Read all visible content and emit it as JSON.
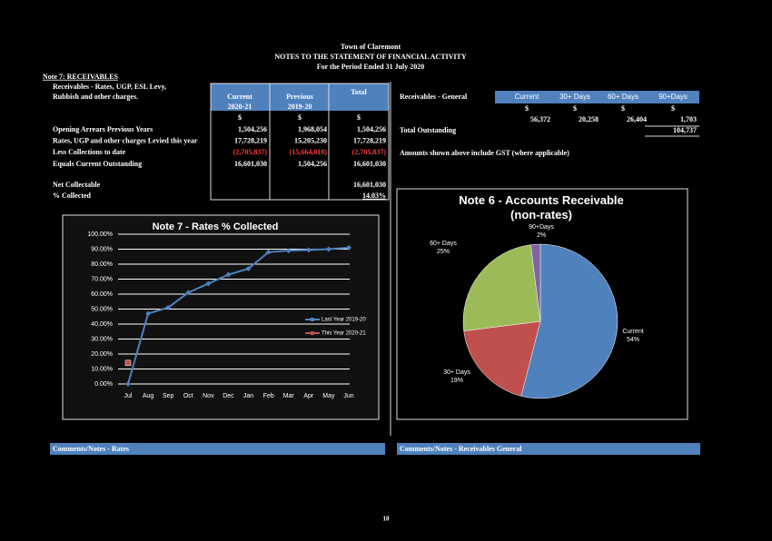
{
  "header": {
    "lines": [
      "Town of Claremont",
      "NOTES TO THE STATEMENT OF FINANCIAL ACTIVITY",
      "For the Period Ended 31 July 2020"
    ]
  },
  "rates": {
    "title": "Note 7: RECEIVABLES",
    "subtitle": [
      "Receivables - Rates, UGP, ESL Levy,",
      "Rubbish and other charges."
    ],
    "columns": [
      [
        "Current",
        "2020-21"
      ],
      [
        "Previous",
        "2019-20"
      ],
      [
        "Total"
      ]
    ],
    "units": [
      "$",
      "$",
      "$"
    ],
    "rows": [
      {
        "label": "Opening Arrears Previous Years",
        "cells": [
          "1,504,256",
          "1,968,054",
          "1,504,256"
        ]
      },
      {
        "label": "Rates, UGP and other charges Levied this year",
        "cells": [
          "17,728,219",
          "15,205,230",
          "17,728,219"
        ]
      },
      {
        "label": "Less Collections to date",
        "cells": [
          "(2,705,837)",
          "(15,664,018)",
          "(2,705,837)"
        ]
      },
      {
        "label": "Equals Current Outstanding",
        "cells": [
          "16,601,030",
          "1,504,256",
          "16,601,030"
        ]
      }
    ],
    "net_label": "Net Collectable",
    "net_value": "16,601,030",
    "pct_label": "% Collected",
    "pct_value": "14.03%"
  },
  "general": {
    "title": "Receivables - General",
    "columns": [
      "Current",
      "30+ Days",
      "60+ Days",
      "90+Days"
    ],
    "units": [
      "$",
      "$",
      "$",
      "$"
    ],
    "cells": [
      "56,372",
      "20,258",
      "26,404",
      "1,703"
    ],
    "total_label": "Total Outstanding",
    "total_value": "104,737",
    "note": "Amounts shown above include GST (where applicable)"
  },
  "chart_data": [
    {
      "type": "line",
      "title": "Note 7 - Rates % Collected",
      "categories": [
        "Jul",
        "Aug",
        "Sep",
        "Oct",
        "Nov",
        "Dec",
        "Jan",
        "Feb",
        "Mar",
        "Apr",
        "May",
        "Jun"
      ],
      "series": [
        {
          "name": "Last Year 2019-20",
          "color": "#4f81bd",
          "values": [
            0,
            47,
            51,
            61,
            67,
            73,
            77,
            88,
            89,
            89.5,
            90,
            91
          ]
        },
        {
          "name": "This Year 2020-21",
          "color": "#c0504d",
          "values": [
            14.03,
            null,
            null,
            null,
            null,
            null,
            null,
            null,
            null,
            null,
            null,
            null
          ]
        }
      ],
      "ylim": [
        0,
        100
      ],
      "yticks": [
        {
          "value": 0,
          "label": "0.00%"
        },
        {
          "value": 10,
          "label": "10.00%"
        },
        {
          "value": 20,
          "label": "20.00%"
        },
        {
          "value": 30,
          "label": "30.00%"
        },
        {
          "value": 40,
          "label": "40.00%"
        },
        {
          "value": 50,
          "label": "50.00%"
        },
        {
          "value": 60,
          "label": "60.00%"
        },
        {
          "value": 70,
          "label": "70.00%"
        },
        {
          "value": 80,
          "label": "80.00%"
        },
        {
          "value": 90,
          "label": "90.00%"
        },
        {
          "value": 100,
          "label": "100.00%"
        }
      ],
      "grid": true,
      "legend": "right"
    },
    {
      "type": "pie",
      "title": "Note 6 - Accounts Receivable (non-rates)",
      "categories": [
        "Current",
        "30+ Days",
        "60+ Days",
        "90+Days"
      ],
      "values": [
        54,
        19,
        25,
        2
      ],
      "value_labels": [
        "54%",
        "19%",
        "25%",
        "2%"
      ],
      "colors": [
        "#4f81bd",
        "#c0504d",
        "#9bbb59",
        "#8064a2"
      ]
    }
  ],
  "footer": {
    "comments": [
      "Comments/Notes - Rates",
      "Comments/Notes - Receivables General"
    ],
    "page": "10"
  }
}
